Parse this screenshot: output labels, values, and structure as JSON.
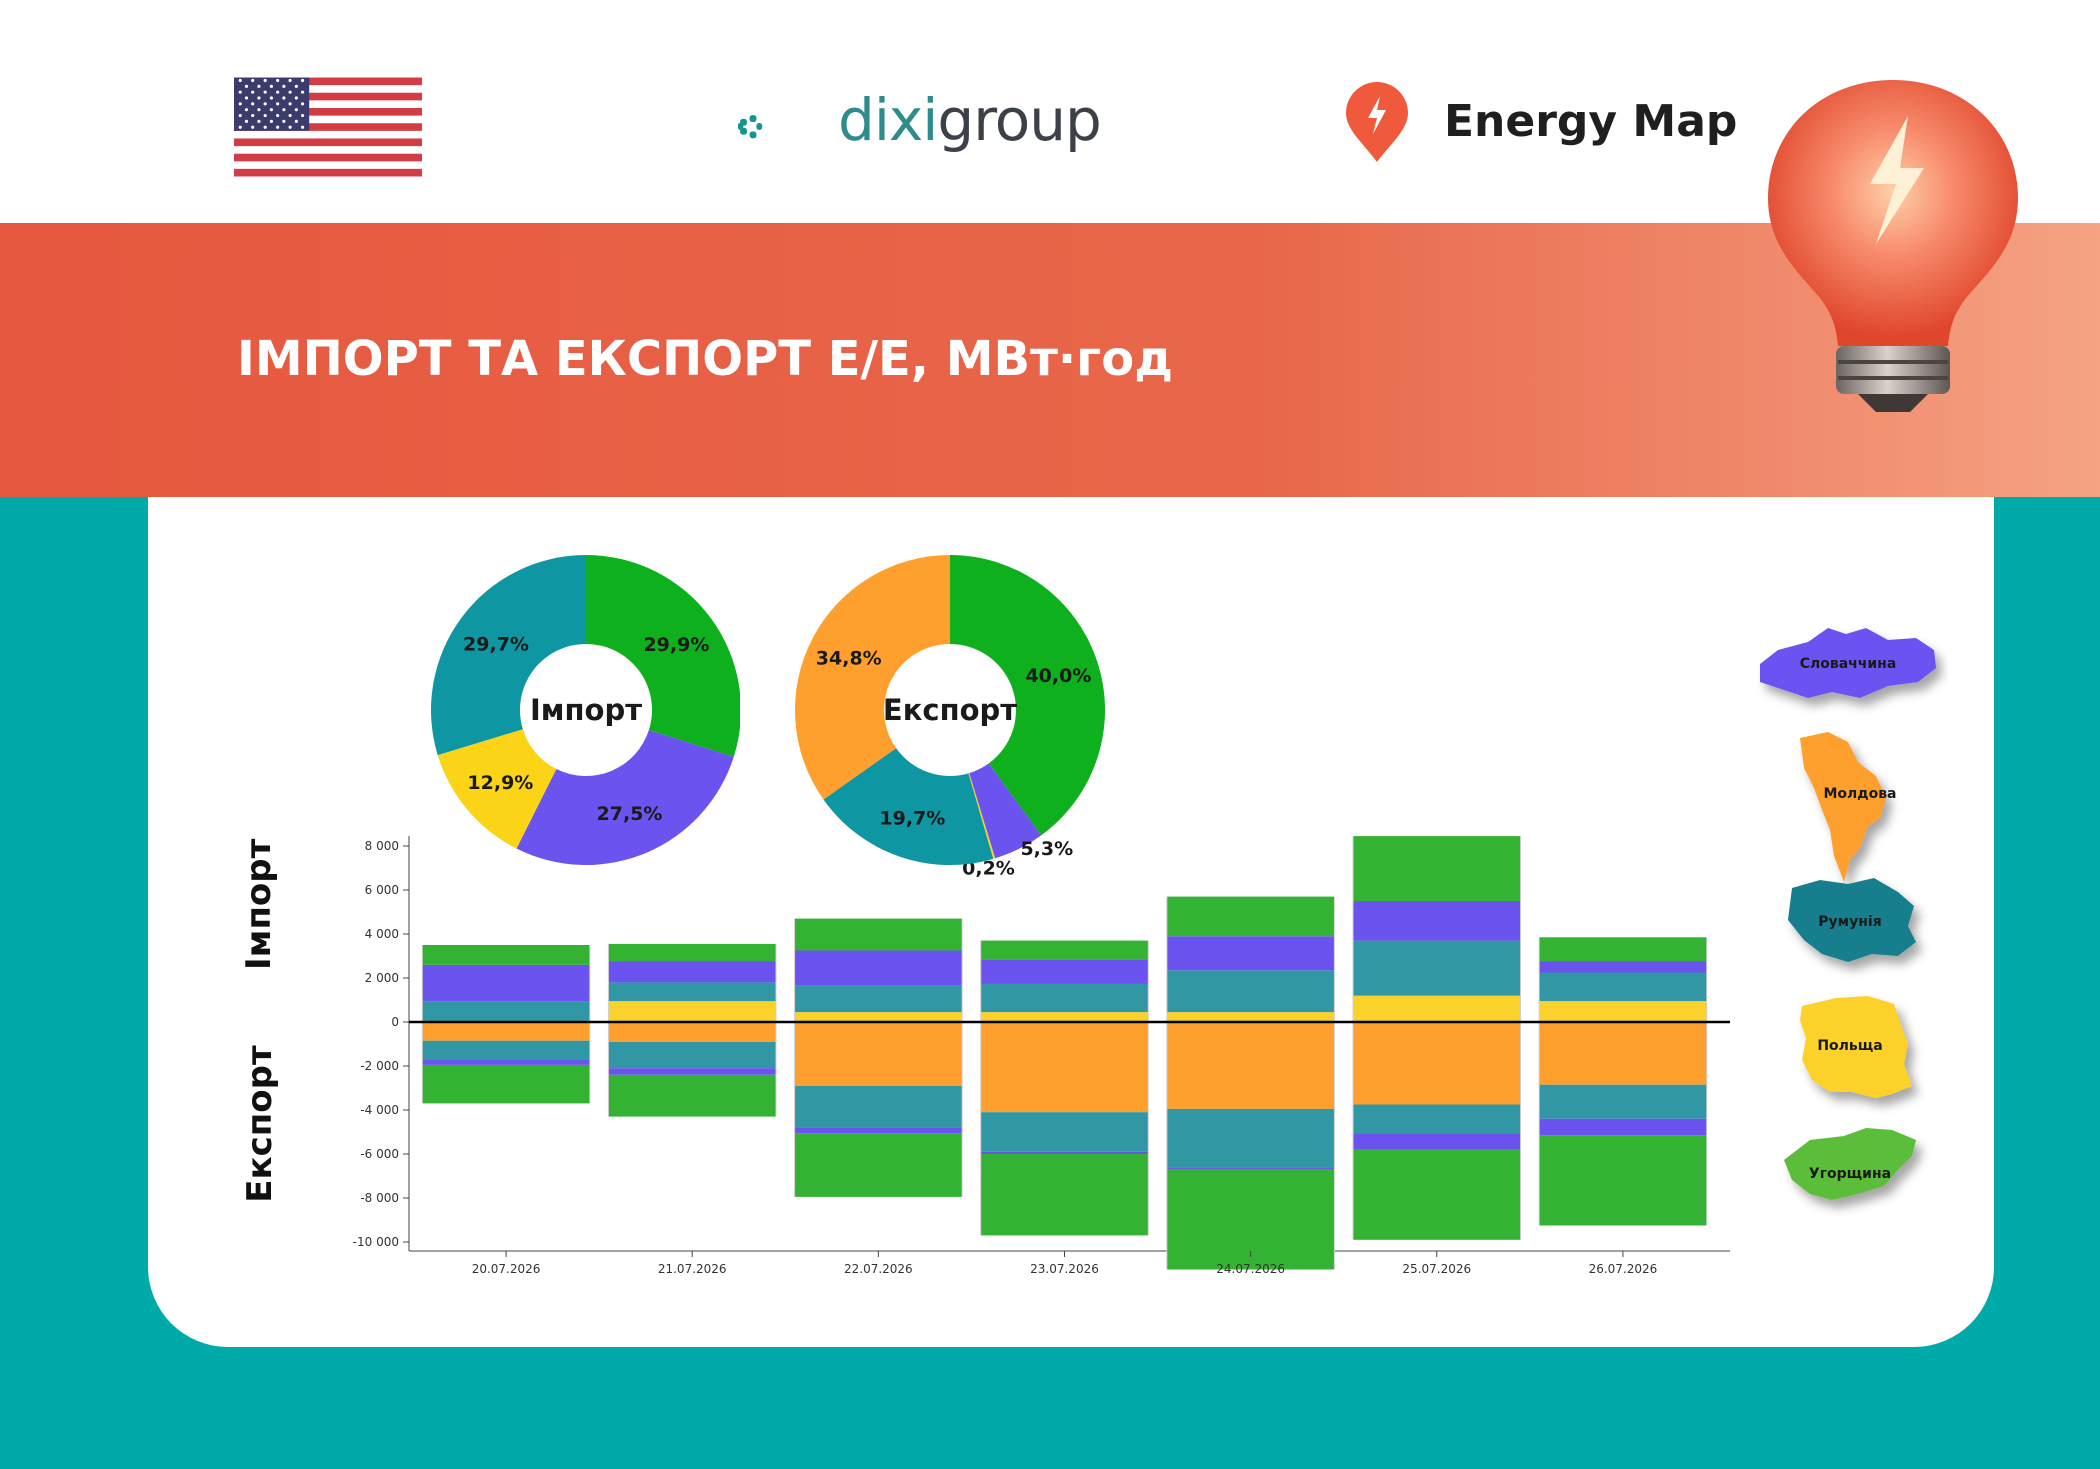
{
  "header": {
    "brand1_part1": "dixi",
    "brand1_part2": "group",
    "brand2": "Energy Map"
  },
  "banner": {
    "title": "ІМПОРТ ТА ЕКСПОРТ Е/Е, МВт·год"
  },
  "colors": {
    "green": "#34b233",
    "purple": "#6b53f0",
    "teal": "#3297a5",
    "yellow": "#fbd12b",
    "orange": "#ffa02e",
    "banner": "#e8674a",
    "background_teal": "#00aaa9",
    "dixi_teal": "#2e8c8c",
    "energy_map_red": "#ef5a3c"
  },
  "side_labels": {
    "import": "Імпорт",
    "export": "Експорт"
  },
  "legend": [
    {
      "name": "Словаччина",
      "color": "#6b53f0",
      "icon": "slovakia-map-icon"
    },
    {
      "name": "Молдова",
      "color": "#ffa02e",
      "icon": "moldova-map-icon"
    },
    {
      "name": "Румунія",
      "color": "#147e8c",
      "icon": "romania-map-icon"
    },
    {
      "name": "Польща",
      "color": "#fbd12b",
      "icon": "poland-map-icon"
    },
    {
      "name": "Угорщина",
      "color": "#5cbd3a",
      "icon": "hungary-map-icon"
    }
  ],
  "chart_data": [
    {
      "type": "pie",
      "center_label": "Імпорт",
      "slices": [
        {
          "name": "Угорщина",
          "value": 29.9,
          "label": "29,9%",
          "color": "#0fb01d"
        },
        {
          "name": "Словаччина",
          "value": 27.5,
          "label": "27,5%",
          "color": "#6b53f0"
        },
        {
          "name": "Польща",
          "value": 12.9,
          "label": "12,9%",
          "color": "#fbd417"
        },
        {
          "name": "Румунія",
          "value": 29.7,
          "label": "29,7%",
          "color": "#0e96a2"
        }
      ]
    },
    {
      "type": "pie",
      "center_label": "Експорт",
      "slices": [
        {
          "name": "Угорщина",
          "value": 40.0,
          "label": "40,0%",
          "color": "#0fb01d"
        },
        {
          "name": "Словаччина",
          "value": 5.3,
          "label": "5,3%",
          "color": "#6b53f0"
        },
        {
          "name": "Польща",
          "value": 0.2,
          "label": "0,2%",
          "color": "#fbd417"
        },
        {
          "name": "Румунія",
          "value": 19.7,
          "label": "19,7%",
          "color": "#0e96a2"
        },
        {
          "name": "Молдова",
          "value": 34.8,
          "label": "34,8%",
          "color": "#ffa02e"
        }
      ]
    },
    {
      "type": "bar",
      "stacked": true,
      "categories": [
        "20.07.2026",
        "21.07.2026",
        "22.07.2026",
        "23.07.2026",
        "24.07.2026",
        "25.07.2026",
        "26.07.2026"
      ],
      "ylim": [
        -11000,
        8000
      ],
      "yticks": [
        8000,
        6000,
        4000,
        2000,
        0,
        -2000,
        -4000,
        -6000,
        -8000,
        -10000
      ],
      "ytick_labels": [
        "8 000",
        "6 000",
        "4 000",
        "2 000",
        "0",
        "-2 000",
        "-4 000",
        "-6 000",
        "-8 000",
        "-10 000"
      ],
      "grid": false,
      "series": [
        {
          "name": "Польща",
          "direction": "import",
          "color": "#fbd12b",
          "values": [
            50,
            950,
            450,
            450,
            450,
            1200,
            950
          ]
        },
        {
          "name": "Румунія",
          "direction": "import",
          "color": "#3297a5",
          "values": [
            900,
            850,
            1200,
            1300,
            1900,
            2500,
            1300
          ]
        },
        {
          "name": "Словаччина",
          "direction": "import",
          "color": "#6b53f0",
          "values": [
            1650,
            950,
            1600,
            1100,
            1550,
            1800,
            500
          ]
        },
        {
          "name": "Угорщина",
          "direction": "import",
          "color": "#34b233",
          "values": [
            900,
            800,
            1450,
            850,
            1800,
            2950,
            1100
          ]
        },
        {
          "name": "Молдова",
          "direction": "export",
          "color": "#ffa02e",
          "values": [
            -850,
            -900,
            -2900,
            -4100,
            -3950,
            -3750,
            -2850
          ]
        },
        {
          "name": "Румунія",
          "direction": "export",
          "color": "#3297a5",
          "values": [
            -850,
            -1200,
            -1900,
            -1800,
            -2650,
            -1300,
            -1550
          ]
        },
        {
          "name": "Словаччина",
          "direction": "export",
          "color": "#6b53f0",
          "values": [
            -250,
            -300,
            -250,
            -100,
            -100,
            -750,
            -750
          ]
        },
        {
          "name": "Угорщина",
          "direction": "export",
          "color": "#34b233",
          "values": [
            -1750,
            -1900,
            -2900,
            -3700,
            -4550,
            -4100,
            -4100
          ]
        }
      ]
    }
  ]
}
